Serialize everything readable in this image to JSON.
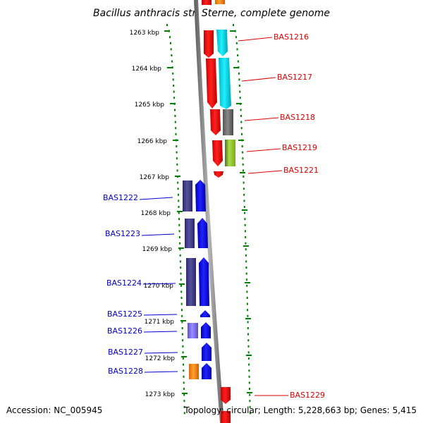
{
  "header": {
    "title": "Bacillus anthracis str. Sterne, complete genome"
  },
  "footer": {
    "accession": "Accession: NC_005945",
    "summary": "Topology: circular; Length: 5,228,663 bp; Genes: 5,415"
  },
  "scale": {
    "ticks": [
      "1263 kbp",
      "1264 kbp",
      "1265 kbp",
      "1266 kbp",
      "1267 kbp",
      "1268 kbp",
      "1269 kbp",
      "1270 kbp",
      "1271 kbp",
      "1272 kbp",
      "1273 kbp"
    ]
  },
  "genes_forward": [
    {
      "id": "BAS1216",
      "strand": "+",
      "color": "#ff0000",
      "partner_color": "#00e5ee"
    },
    {
      "id": "BAS1217",
      "strand": "+",
      "color": "#ff0000",
      "partner_color": "#00e5ee"
    },
    {
      "id": "BAS1218",
      "strand": "+",
      "color": "#ff0000",
      "partner_color": "#666666"
    },
    {
      "id": "BAS1219",
      "strand": "+",
      "color": "#ff0000",
      "partner_color": "#99cc33"
    },
    {
      "id": "BAS1221",
      "strand": "+",
      "color": "#ff0000",
      "partner_color": ""
    },
    {
      "id": "BAS1229",
      "strand": "+",
      "color": "#ff0000",
      "partner_color": ""
    }
  ],
  "genes_reverse": [
    {
      "id": "BAS1222",
      "strand": "-",
      "color": "#0000ee",
      "partner_color": "#3d3a8c"
    },
    {
      "id": "BAS1223",
      "strand": "-",
      "color": "#0000ee",
      "partner_color": "#3d3a8c"
    },
    {
      "id": "BAS1224",
      "strand": "-",
      "color": "#0000ee",
      "partner_color": "#3d3a8c"
    },
    {
      "id": "BAS1225",
      "strand": "-",
      "color": "#0000ee",
      "partner_color": ""
    },
    {
      "id": "BAS1226",
      "strand": "-",
      "color": "#0000ee",
      "partner_color": "#7b68ee"
    },
    {
      "id": "BAS1227",
      "strand": "-",
      "color": "#0000ee",
      "partner_color": ""
    },
    {
      "id": "BAS1228",
      "strand": "-",
      "color": "#0000ee",
      "partner_color": "#ff8800"
    }
  ],
  "colors": {
    "forward_label": "#dd0000",
    "reverse_label": "#0000cc",
    "dots": "#008000",
    "backbone": "#888888"
  }
}
